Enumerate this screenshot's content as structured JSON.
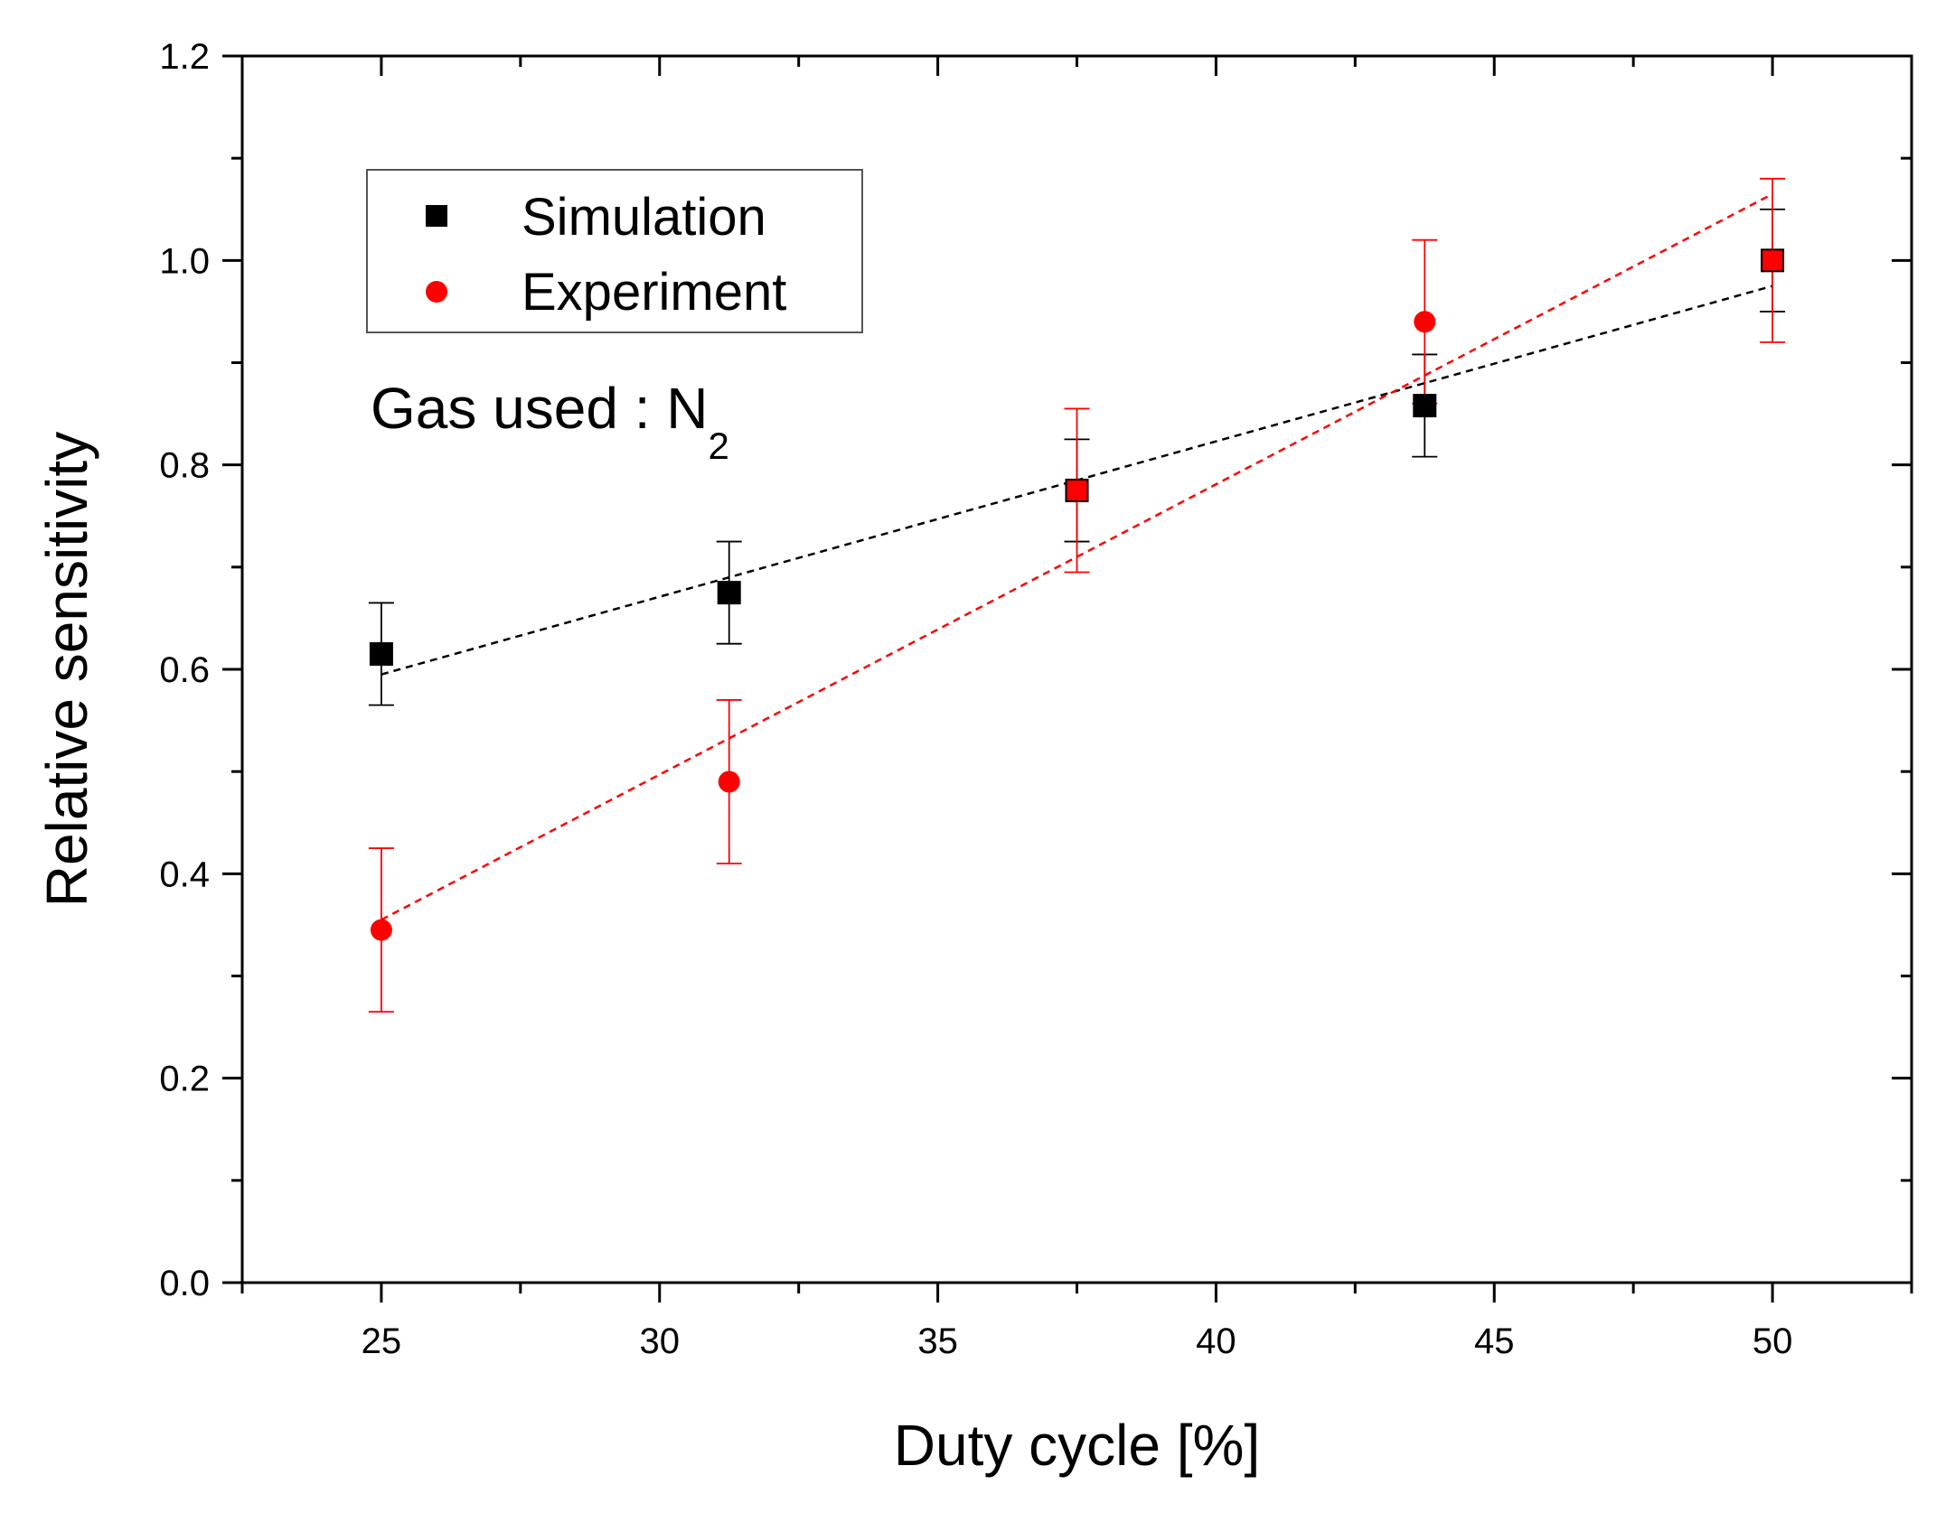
{
  "chart_data": {
    "type": "scatter",
    "xlabel": "Duty cycle [%]",
    "ylabel": "Relative sensitivity",
    "xlim": [
      22.5,
      52.5
    ],
    "ylim": [
      0.0,
      1.2
    ],
    "x_ticks": [
      25,
      30,
      35,
      40,
      45,
      50
    ],
    "x_tick_labels": [
      "25",
      "30",
      "35",
      "40",
      "45",
      "50"
    ],
    "y_ticks": [
      0.0,
      0.2,
      0.4,
      0.6,
      0.8,
      1.0,
      1.2
    ],
    "y_tick_labels": [
      "0.0",
      "0.2",
      "0.4",
      "0.6",
      "0.8",
      "1.0",
      "1.2"
    ],
    "grid": false,
    "legend_position": "top-left",
    "series": [
      {
        "name": "Simulation",
        "marker": "square",
        "color": "#000000",
        "x": [
          25,
          31.25,
          37.5,
          43.75,
          50
        ],
        "y": [
          0.615,
          0.675,
          0.775,
          0.858,
          1.0
        ],
        "error": [
          0.05,
          0.05,
          0.05,
          0.05,
          0.05
        ],
        "fit_line": {
          "x": [
            25,
            50
          ],
          "y": [
            0.595,
            0.975
          ]
        }
      },
      {
        "name": "Experiment",
        "marker": "circle",
        "color": "#ff0000",
        "x": [
          25,
          31.25,
          37.5,
          43.75,
          50
        ],
        "y": [
          0.345,
          0.49,
          0.775,
          0.94,
          1.0
        ],
        "error": [
          0.08,
          0.08,
          0.08,
          0.08,
          0.08
        ],
        "fit_line": {
          "x": [
            25,
            50
          ],
          "y": [
            0.355,
            1.065
          ]
        }
      }
    ],
    "annotation": {
      "text": "Gas used : N",
      "subscript": "2"
    }
  }
}
